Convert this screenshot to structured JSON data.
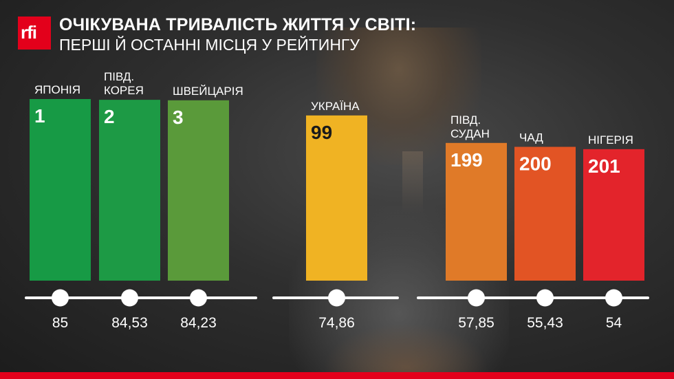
{
  "logo_text": "rfi",
  "title": "ОЧІКУВАНА ТРИВАЛІСТЬ ЖИТТЯ У СВІТІ:",
  "subtitle": "ПЕРШІ Й ОСТАННІ МІСЦЯ У РЕЙТИНГУ",
  "chart_data": {
    "type": "bar",
    "groups": [
      [
        0,
        1,
        2
      ],
      [
        3
      ],
      [
        4,
        5,
        6
      ]
    ],
    "items": [
      {
        "country": [
          "ЯПОНІЯ"
        ],
        "rank": "1",
        "value": 85,
        "value_label": "85",
        "color": "#179a45"
      },
      {
        "country": [
          "ПІВД.",
          "КОРЕЯ"
        ],
        "rank": "2",
        "value": 84.53,
        "value_label": "84,53",
        "color": "#1d9a45"
      },
      {
        "country": [
          "ШВЕЙЦАРІЯ"
        ],
        "rank": "3",
        "value": 84.23,
        "value_label": "84,23",
        "color": "#5a9a3a"
      },
      {
        "country": [
          "УКРАЇНА"
        ],
        "rank": "99",
        "value": 74.86,
        "value_label": "74,86",
        "color": "#f0b323"
      },
      {
        "country": [
          "ПІВД.",
          "СУДАН"
        ],
        "rank": "199",
        "value": 57.85,
        "value_label": "57,85",
        "color": "#e07a28"
      },
      {
        "country": [
          "ЧАД"
        ],
        "rank": "200",
        "value": 55.43,
        "value_label": "55,43",
        "color": "#e25424"
      },
      {
        "country": [
          "НІГЕРІЯ"
        ],
        "rank": "201",
        "value": 54,
        "value_label": "54",
        "color": "#e3242b"
      }
    ]
  }
}
